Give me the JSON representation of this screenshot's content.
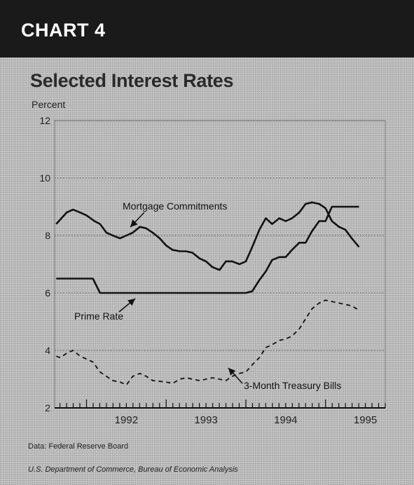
{
  "header": {
    "label": "CHART 4"
  },
  "chart_data": {
    "type": "line",
    "title": "Selected Interest Rates",
    "ylabel": "Percent",
    "ylim": [
      2,
      12
    ],
    "yticks": [
      2,
      4,
      6,
      8,
      10,
      12
    ],
    "xlim": [
      1991.6,
      1995.75
    ],
    "xticks": [
      {
        "label": "1992",
        "value": 1992.5
      },
      {
        "label": "1993",
        "value": 1993.5
      },
      {
        "label": "1994",
        "value": 1994.5
      },
      {
        "label": "1995",
        "value": 1995.5
      }
    ],
    "grid": true,
    "series": [
      {
        "name": "Mortgage Commitments",
        "style": "solid",
        "points": [
          [
            1991.62,
            8.4
          ],
          [
            1991.75,
            8.8
          ],
          [
            1991.83,
            8.9
          ],
          [
            1991.92,
            8.8
          ],
          [
            1992.0,
            8.7
          ],
          [
            1992.1,
            8.5
          ],
          [
            1992.17,
            8.4
          ],
          [
            1992.25,
            8.1
          ],
          [
            1992.33,
            8.0
          ],
          [
            1992.42,
            7.9
          ],
          [
            1992.5,
            8.0
          ],
          [
            1992.58,
            8.1
          ],
          [
            1992.67,
            8.3
          ],
          [
            1992.75,
            8.25
          ],
          [
            1992.83,
            8.1
          ],
          [
            1992.92,
            7.9
          ],
          [
            1993.0,
            7.65
          ],
          [
            1993.08,
            7.5
          ],
          [
            1993.17,
            7.45
          ],
          [
            1993.25,
            7.45
          ],
          [
            1993.33,
            7.4
          ],
          [
            1993.42,
            7.2
          ],
          [
            1993.5,
            7.1
          ],
          [
            1993.58,
            6.9
          ],
          [
            1993.67,
            6.8
          ],
          [
            1993.75,
            7.1
          ],
          [
            1993.83,
            7.1
          ],
          [
            1993.92,
            7.0
          ],
          [
            1994.0,
            7.1
          ],
          [
            1994.08,
            7.6
          ],
          [
            1994.17,
            8.2
          ],
          [
            1994.25,
            8.6
          ],
          [
            1994.33,
            8.4
          ],
          [
            1994.42,
            8.6
          ],
          [
            1994.5,
            8.5
          ],
          [
            1994.58,
            8.6
          ],
          [
            1994.67,
            8.8
          ],
          [
            1994.75,
            9.1
          ],
          [
            1994.83,
            9.15
          ],
          [
            1994.92,
            9.1
          ],
          [
            1995.0,
            8.95
          ],
          [
            1995.08,
            8.5
          ],
          [
            1995.17,
            8.3
          ],
          [
            1995.25,
            8.2
          ],
          [
            1995.33,
            7.9
          ],
          [
            1995.42,
            7.6
          ]
        ]
      },
      {
        "name": "Prime Rate",
        "style": "solid",
        "points": [
          [
            1991.62,
            6.5
          ],
          [
            1992.08,
            6.5
          ],
          [
            1992.17,
            6.0
          ],
          [
            1994.0,
            6.0
          ],
          [
            1994.08,
            6.06
          ],
          [
            1994.17,
            6.45
          ],
          [
            1994.25,
            6.75
          ],
          [
            1994.33,
            7.15
          ],
          [
            1994.42,
            7.25
          ],
          [
            1994.5,
            7.25
          ],
          [
            1994.58,
            7.5
          ],
          [
            1994.67,
            7.75
          ],
          [
            1994.75,
            7.75
          ],
          [
            1994.83,
            8.15
          ],
          [
            1994.92,
            8.5
          ],
          [
            1995.0,
            8.5
          ],
          [
            1995.08,
            9.0
          ],
          [
            1995.42,
            9.0
          ]
        ]
      },
      {
        "name": "3-Month Treasury Bills",
        "style": "dashed",
        "points": [
          [
            1991.62,
            3.8
          ],
          [
            1991.67,
            3.75
          ],
          [
            1991.75,
            3.9
          ],
          [
            1991.83,
            4.0
          ],
          [
            1991.92,
            3.8
          ],
          [
            1992.0,
            3.7
          ],
          [
            1992.08,
            3.6
          ],
          [
            1992.17,
            3.25
          ],
          [
            1992.25,
            3.1
          ],
          [
            1992.33,
            2.95
          ],
          [
            1992.42,
            2.9
          ],
          [
            1992.5,
            2.8
          ],
          [
            1992.58,
            3.1
          ],
          [
            1992.67,
            3.2
          ],
          [
            1992.75,
            3.1
          ],
          [
            1992.83,
            2.95
          ],
          [
            1993.0,
            2.9
          ],
          [
            1993.08,
            2.85
          ],
          [
            1993.17,
            3.0
          ],
          [
            1993.25,
            3.05
          ],
          [
            1993.33,
            3.0
          ],
          [
            1993.42,
            2.95
          ],
          [
            1993.5,
            3.0
          ],
          [
            1993.58,
            3.05
          ],
          [
            1993.67,
            3.0
          ],
          [
            1993.75,
            2.95
          ],
          [
            1993.83,
            3.1
          ],
          [
            1993.92,
            3.2
          ],
          [
            1994.0,
            3.25
          ],
          [
            1994.08,
            3.5
          ],
          [
            1994.17,
            3.75
          ],
          [
            1994.25,
            4.1
          ],
          [
            1994.33,
            4.2
          ],
          [
            1994.42,
            4.35
          ],
          [
            1994.5,
            4.4
          ],
          [
            1994.58,
            4.5
          ],
          [
            1994.67,
            4.75
          ],
          [
            1994.75,
            5.1
          ],
          [
            1994.83,
            5.45
          ],
          [
            1994.92,
            5.65
          ],
          [
            1995.0,
            5.75
          ],
          [
            1995.08,
            5.7
          ],
          [
            1995.17,
            5.65
          ],
          [
            1995.25,
            5.6
          ],
          [
            1995.33,
            5.55
          ],
          [
            1995.42,
            5.4
          ]
        ]
      }
    ],
    "annotations": [
      {
        "text": "Mortgage Commitments",
        "series": "Mortgage Commitments"
      },
      {
        "text": "Prime Rate",
        "series": "Prime Rate"
      },
      {
        "text": "3-Month Treasury Bills",
        "series": "3-Month Treasury Bills"
      }
    ]
  },
  "footer": {
    "source": "Data: Federal Reserve Board",
    "agency": "U.S. Department of Commerce, Bureau of Economic Analysis"
  }
}
